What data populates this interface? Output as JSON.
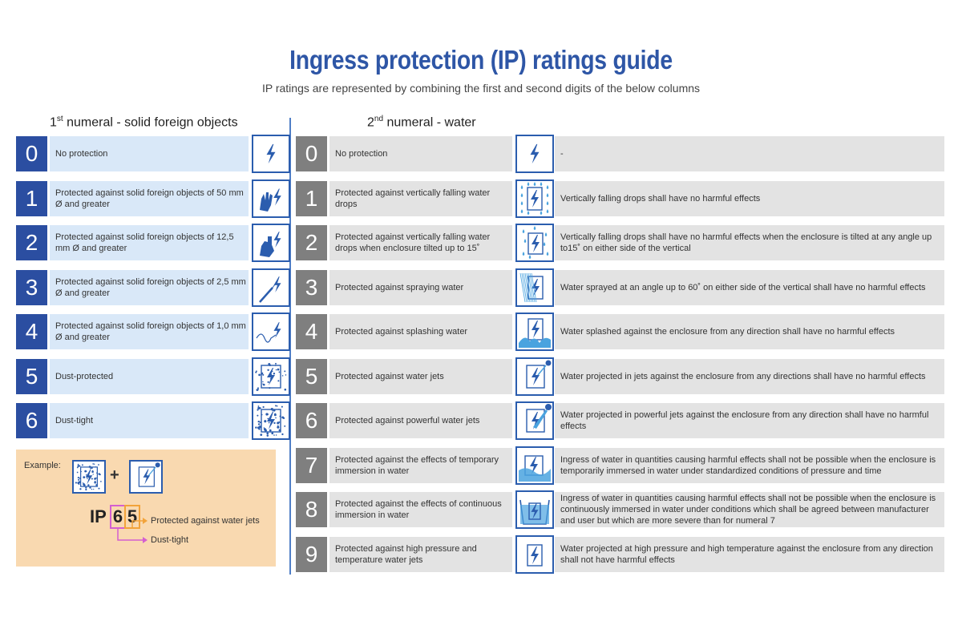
{
  "title": "Ingress protection (IP) ratings guide",
  "subtitle": "IP ratings are represented by combining the first and second digits of the below columns",
  "solids": {
    "heading_ordinal": "1",
    "heading_sup": "st",
    "heading_text": " numeral - solid foreign objects",
    "rows": [
      {
        "digit": "0",
        "desc": "No protection",
        "icon": "lightning-only-icon"
      },
      {
        "digit": "1",
        "desc": "Protected against solid foreign objects of 50 mm Ø and greater",
        "icon": "hand-icon"
      },
      {
        "digit": "2",
        "desc": "Protected against solid foreign objects of 12,5 mm Ø and greater",
        "icon": "finger-icon"
      },
      {
        "digit": "3",
        "desc": "Protected against solid foreign objects of 2,5 mm Ø and greater",
        "icon": "tool-icon"
      },
      {
        "digit": "4",
        "desc": "Protected against solid foreign objects of 1,0 mm Ø and greater",
        "icon": "wire-icon"
      },
      {
        "digit": "5",
        "desc": "Dust-protected",
        "icon": "dust-protected-icon"
      },
      {
        "digit": "6",
        "desc": "Dust-tight",
        "icon": "dust-tight-icon"
      }
    ]
  },
  "water": {
    "heading_ordinal": "2",
    "heading_sup": "nd",
    "heading_text": " numeral - water",
    "rows": [
      {
        "digit": "0",
        "desc": "No protection",
        "detail": "-",
        "icon": "lightning-only-icon"
      },
      {
        "digit": "1",
        "desc": "Protected against vertically falling water drops",
        "detail": "Vertically falling drops shall have no harmful effects",
        "icon": "falling-drops-icon"
      },
      {
        "digit": "2",
        "desc": "Protected against vertically falling water drops when enclosure tilted up to 15˚",
        "detail": "Vertically falling drops shall have no harmful effects when the enclosure is tilted at any angle up to15˚ on either side of the vertical",
        "icon": "tilted-drops-icon"
      },
      {
        "digit": "3",
        "desc": "Protected against spraying water",
        "detail": "Water sprayed at an angle up to 60˚ on either side of the vertical shall have no harmful effects",
        "icon": "spray-icon"
      },
      {
        "digit": "4",
        "desc": "Protected against splashing water",
        "detail": "Water splashed against the enclosure from any direction shall have no harmful effects",
        "icon": "splash-icon"
      },
      {
        "digit": "5",
        "desc": "Protected against water jets",
        "detail": "Water projected in jets against the enclosure from any directions shall have no harmful effects",
        "icon": "jet-icon"
      },
      {
        "digit": "6",
        "desc": "Protected against powerful water jets",
        "detail": "Water projected in powerful jets against the enclosure from any direction shall have no harmful effects",
        "icon": "powerful-jet-icon"
      },
      {
        "digit": "7",
        "desc": "Protected against the effects of temporary immersion in water",
        "detail": "Ingress of water in quantities causing harmful effects shall not be possible when the enclosure is temporarily immersed in water under standardized conditions of pressure and time",
        "icon": "temporary-immersion-icon"
      },
      {
        "digit": "8",
        "desc": "Protected against the effects of continuous immersion in water",
        "detail": "Ingress of water in quantities causing harmful effects shall not be possible when the enclosure is continuously immersed in water under conditions which shall be agreed between manufacturer and user but which are more severe than for numeral 7",
        "icon": "continuous-immersion-icon"
      },
      {
        "digit": "9",
        "desc": "Protected against high pressure and temperature water jets",
        "detail": "Water projected at high pressure and high temperature against the enclosure from any direction shall not have harmful effects",
        "icon": "high-pressure-icon"
      }
    ]
  },
  "example": {
    "label": "Example:",
    "plus": "+",
    "prefix": "IP",
    "first_digit": "6",
    "second_digit": "5",
    "first_meaning": "Dust-tight",
    "second_meaning": "Protected against water jets"
  },
  "colors": {
    "title": "#2e56a6",
    "solid_digit_bg": "#2b4ea1",
    "water_digit_bg": "#7f7f7f",
    "solid_desc_bg": "#d9e8f8",
    "water_desc_bg": "#e3e3e3",
    "example_bg": "#f9d9b0",
    "first_digit_line": "#d45fd0",
    "second_digit_line": "#f2a33a"
  }
}
